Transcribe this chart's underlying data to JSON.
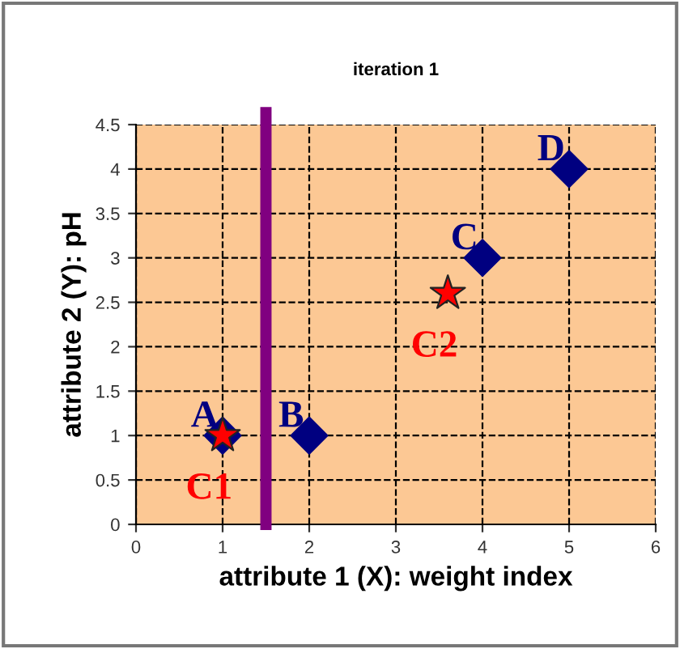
{
  "chart_data": {
    "type": "scatter",
    "title": "iteration 1",
    "xlabel": "attribute 1 (X): weight index",
    "ylabel": "attribute 2 (Y): pH",
    "series": [
      {
        "x": [
          1,
          2,
          4,
          5
        ],
        "values": [
          1,
          1,
          3,
          4
        ],
        "color": "#000080",
        "marker": "diamond",
        "value_labels": [
          "A",
          "B",
          "C",
          "D"
        ]
      },
      {
        "x": [
          1,
          3.6
        ],
        "values": [
          1,
          2.6
        ],
        "color": "#ff0000",
        "marker": "star",
        "value_labels": [
          "C1",
          "C2"
        ]
      }
    ],
    "xlim": [
      0,
      6
    ],
    "xticks": [
      0,
      1,
      2,
      3,
      4,
      5,
      6
    ],
    "ylim": [
      0,
      4.5
    ],
    "yticks": [
      0,
      0.5,
      1,
      1.5,
      2,
      2.5,
      3,
      3.5,
      4,
      4.5
    ],
    "grid": true,
    "legend": false,
    "ref_lines": [
      {
        "axis": "x",
        "value": 1.5,
        "color": "#800080"
      }
    ]
  }
}
